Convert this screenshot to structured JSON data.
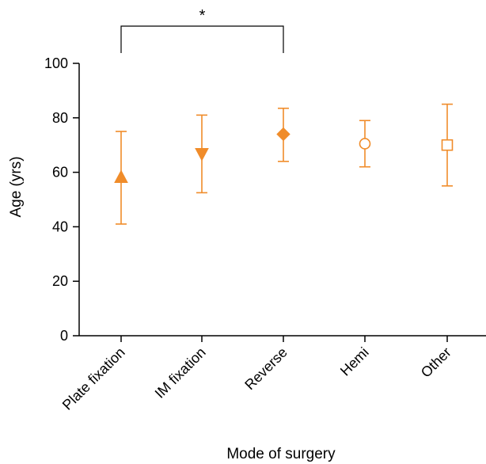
{
  "chart_data": {
    "type": "scatter",
    "title": "",
    "xlabel": "Mode of surgery",
    "ylabel": "Age (yrs)",
    "ylim": [
      0,
      100
    ],
    "yticks": [
      0,
      20,
      40,
      60,
      80,
      100
    ],
    "categories": [
      "Plate fixation",
      "IM fixation",
      "Reverse",
      "Hemi",
      "Other"
    ],
    "series": [
      {
        "markers": [
          "triangle-up-filled",
          "triangle-down-filled",
          "diamond-filled",
          "circle-open",
          "square-open"
        ],
        "values": [
          58,
          67,
          74,
          70.5,
          70
        ],
        "upper": [
          75,
          81,
          83.5,
          79,
          85
        ],
        "lower": [
          41,
          52.5,
          64,
          62,
          55
        ]
      }
    ],
    "annotations": [
      {
        "from": "Plate fixation",
        "to": "Reverse",
        "text": "*"
      }
    ],
    "colors": {
      "series": "#f08c2a",
      "axis": "#000000"
    },
    "grid": false
  }
}
